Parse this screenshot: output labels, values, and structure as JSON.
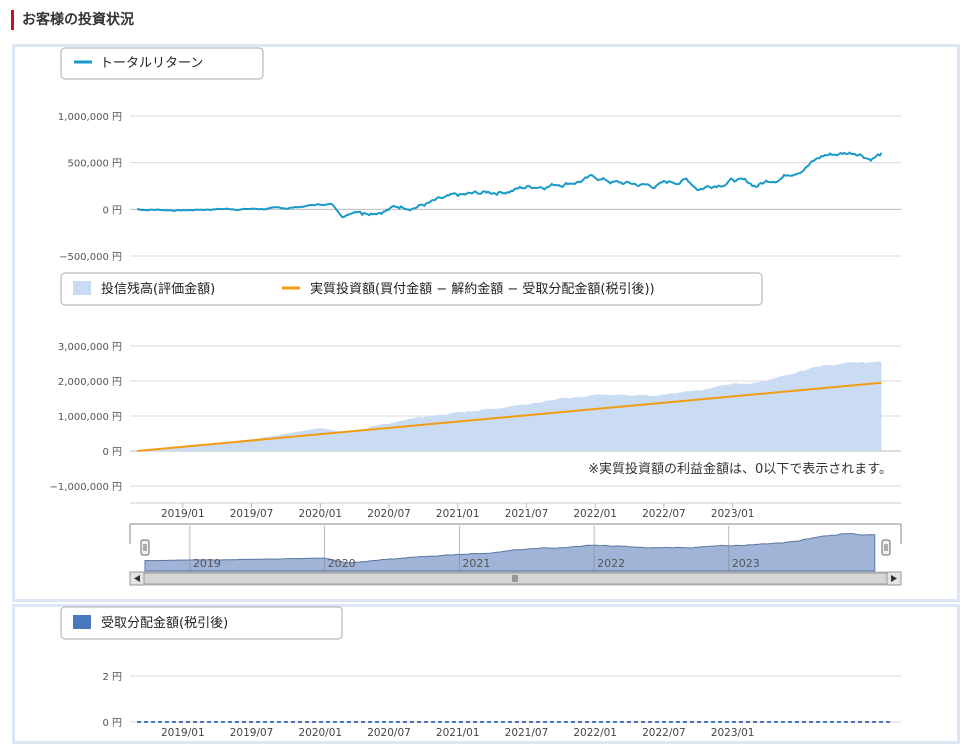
{
  "page": {
    "heading": "お客様の投資状況"
  },
  "colors": {
    "accent": "#c8102e",
    "total_return": "#1a9ac8",
    "balance_fill": "#c9dcf3",
    "invested_line": "#f39c12",
    "distribution": "#4a78c0",
    "navigator_fill": "#9fb4d6",
    "navigator_line": "#5a78a8",
    "panel_border": "#dde6f4"
  },
  "note": "※実質投資額の利益金額は、0以下で表示されます。",
  "chart_data": [
    {
      "type": "line",
      "legend": [
        "トータルリターン"
      ],
      "y_ticks": [
        "1,000,000 円",
        "500,000 円",
        "0 円",
        "−500,000 円"
      ],
      "ylim": [
        -500000,
        1000000
      ],
      "x_range": [
        "2018-09-01",
        "2024-03-01"
      ],
      "series": [
        {
          "name": "トータルリターン",
          "points": [
            [
              "2018-09",
              0
            ],
            [
              "2018-12",
              -5000
            ],
            [
              "2019-01",
              -10000
            ],
            [
              "2019-04",
              5000
            ],
            [
              "2019-07",
              5000
            ],
            [
              "2019-10",
              10000
            ],
            [
              "2019-12",
              40000
            ],
            [
              "2020-01",
              50000
            ],
            [
              "2020-02",
              55000
            ],
            [
              "2020-03",
              -80000
            ],
            [
              "2020-04",
              -20000
            ],
            [
              "2020-07",
              20000
            ],
            [
              "2020-10",
              60000
            ],
            [
              "2021-01",
              120000
            ],
            [
              "2021-04",
              180000
            ],
            [
              "2021-07",
              240000
            ],
            [
              "2021-10",
              290000
            ],
            [
              "2022-01",
              340000
            ],
            [
              "2022-03",
              280000
            ],
            [
              "2022-06",
              250000
            ],
            [
              "2022-09",
              320000
            ],
            [
              "2022-10",
              230000
            ],
            [
              "2023-01",
              330000
            ],
            [
              "2023-03",
              250000
            ],
            [
              "2023-06",
              400000
            ],
            [
              "2023-09",
              580000
            ],
            [
              "2023-12",
              620000
            ],
            [
              "2024-01",
              560000
            ],
            [
              "2024-02",
              600000
            ]
          ]
        }
      ]
    },
    {
      "type": "area",
      "legend": [
        "投信残高(評価金額)",
        "実質投資額(買付金額 − 解約金額 − 受取分配金額(税引後))"
      ],
      "y_ticks": [
        "3,000,000 円",
        "2,000,000 円",
        "1,000,000 円",
        "0 円",
        "−1,000,000 円"
      ],
      "ylim": [
        -1000000,
        3000000
      ],
      "x_ticks": [
        "2019/01",
        "2019/07",
        "2020/01",
        "2020/07",
        "2021/01",
        "2021/07",
        "2022/01",
        "2022/07",
        "2023/01"
      ],
      "x_range": [
        "2018-09-01",
        "2024-03-01"
      ],
      "series": [
        {
          "name": "投信残高(評価金額)",
          "points": [
            [
              "2018-09",
              0
            ],
            [
              "2019-01",
              100000
            ],
            [
              "2019-07",
              330000
            ],
            [
              "2020-01",
              650000
            ],
            [
              "2020-03",
              550000
            ],
            [
              "2020-07",
              800000
            ],
            [
              "2021-01",
              1100000
            ],
            [
              "2021-07",
              1350000
            ],
            [
              "2022-01",
              1600000
            ],
            [
              "2022-06",
              1580000
            ],
            [
              "2023-01",
              1900000
            ],
            [
              "2023-03",
              1950000
            ],
            [
              "2023-09",
              2450000
            ],
            [
              "2024-02",
              2550000
            ]
          ]
        },
        {
          "name": "実質投資額(買付金額 − 解約金額 − 受取分配金額(税引後))",
          "points": [
            [
              "2018-09",
              0
            ],
            [
              "2024-02",
              1950000
            ]
          ]
        }
      ]
    },
    {
      "type": "area",
      "x_labels": [
        "2019",
        "2020",
        "2021",
        "2022",
        "2023"
      ],
      "x_range": [
        "2018-09-01",
        "2024-03-01"
      ],
      "series": [
        {
          "name": "navigator",
          "points": [
            [
              "2018-09",
              0
            ],
            [
              "2019-06",
              20000
            ],
            [
              "2020-01",
              60000
            ],
            [
              "2020-03",
              -60000
            ],
            [
              "2020-07",
              30000
            ],
            [
              "2021-01",
              150000
            ],
            [
              "2021-07",
              250000
            ],
            [
              "2022-01",
              360000
            ],
            [
              "2022-06",
              280000
            ],
            [
              "2023-01",
              330000
            ],
            [
              "2023-06",
              420000
            ],
            [
              "2023-09",
              560000
            ],
            [
              "2023-12",
              640000
            ],
            [
              "2024-02",
              580000
            ]
          ]
        }
      ]
    },
    {
      "type": "bar",
      "legend": [
        "受取分配金額(税引後)"
      ],
      "y_ticks": [
        "2 円",
        "0 円"
      ],
      "ylim": [
        0,
        2
      ],
      "x_ticks": [
        "2019/01",
        "2019/07",
        "2020/01",
        "2020/07",
        "2021/01",
        "2021/07",
        "2022/01",
        "2022/07",
        "2023/01"
      ],
      "x_range": [
        "2018-09-01",
        "2024-03-01"
      ],
      "series": [
        {
          "name": "受取分配金額(税引後)",
          "values": [
            0
          ]
        }
      ]
    }
  ]
}
